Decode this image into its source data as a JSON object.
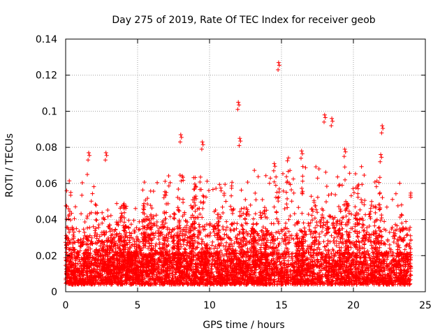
{
  "chart_data": {
    "type": "scatter",
    "title": "Day 275 of 2019, Rate Of TEC Index for receiver geob",
    "xlabel": "GPS time / hours",
    "ylabel": "ROTI / TECUs",
    "xlim": [
      0,
      25
    ],
    "ylim": [
      0,
      0.14
    ],
    "xticks": [
      0,
      5,
      10,
      15,
      20,
      25
    ],
    "xtick_labels": [
      "0",
      "5",
      "10",
      "15",
      "20",
      "25"
    ],
    "yticks": [
      0,
      0.02,
      0.04,
      0.06,
      0.08,
      0.1,
      0.12,
      0.14
    ],
    "ytick_labels": [
      "0",
      "0.02",
      "0.04",
      "0.06",
      "0.08",
      "0.1",
      "0.12",
      "0.14"
    ],
    "grid": true,
    "marker": "+",
    "color": "#ff0000",
    "x_data_range": [
      0,
      24
    ],
    "notable_points": [
      {
        "x": 14.8,
        "y": 0.127
      },
      {
        "x": 12.0,
        "y": 0.105
      },
      {
        "x": 18.0,
        "y": 0.098
      },
      {
        "x": 18.5,
        "y": 0.096
      },
      {
        "x": 22.0,
        "y": 0.092
      },
      {
        "x": 8.0,
        "y": 0.087
      },
      {
        "x": 12.1,
        "y": 0.085
      },
      {
        "x": 9.5,
        "y": 0.083
      },
      {
        "x": 19.4,
        "y": 0.079
      },
      {
        "x": 1.6,
        "y": 0.077
      },
      {
        "x": 2.8,
        "y": 0.077
      },
      {
        "x": 16.4,
        "y": 0.078
      },
      {
        "x": 14.5,
        "y": 0.071
      },
      {
        "x": 21.9,
        "y": 0.076
      }
    ],
    "density_profile": [
      {
        "x_range": [
          0,
          2
        ],
        "base_max": 0.03,
        "spike_max": 0.065
      },
      {
        "x_range": [
          2,
          5
        ],
        "base_max": 0.03,
        "spike_max": 0.05
      },
      {
        "x_range": [
          5,
          7
        ],
        "base_max": 0.035,
        "spike_max": 0.062
      },
      {
        "x_range": [
          7,
          9
        ],
        "base_max": 0.03,
        "spike_max": 0.07
      },
      {
        "x_range": [
          9,
          12
        ],
        "base_max": 0.032,
        "spike_max": 0.065
      },
      {
        "x_range": [
          12,
          15
        ],
        "base_max": 0.032,
        "spike_max": 0.068
      },
      {
        "x_range": [
          15,
          17
        ],
        "base_max": 0.03,
        "spike_max": 0.075
      },
      {
        "x_range": [
          17,
          19
        ],
        "base_max": 0.04,
        "spike_max": 0.085
      },
      {
        "x_range": [
          19,
          22
        ],
        "base_max": 0.035,
        "spike_max": 0.07
      },
      {
        "x_range": [
          22,
          24
        ],
        "base_max": 0.03,
        "spike_max": 0.062
      }
    ]
  }
}
